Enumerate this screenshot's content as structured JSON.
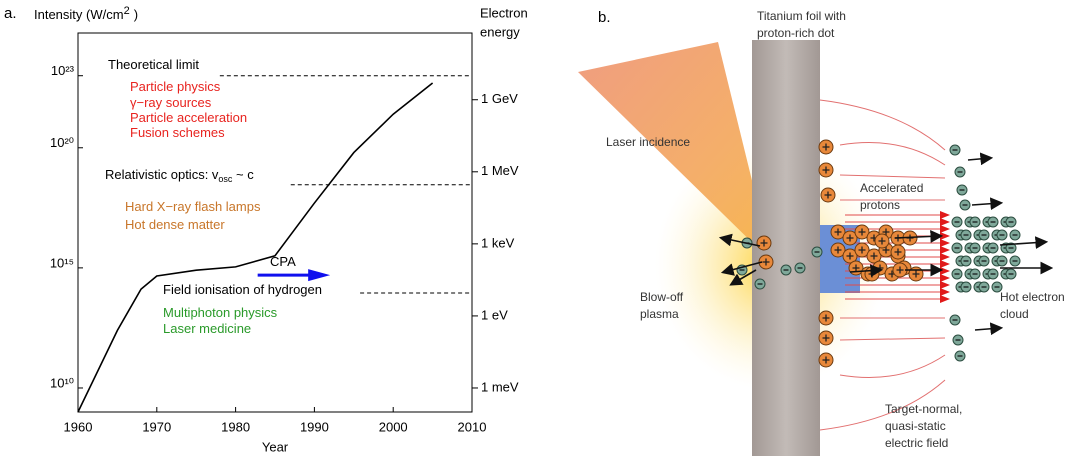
{
  "panel_a_label": "a.",
  "chart_data": {
    "type": "line",
    "y_label": {
      "text": "Intensity (W/cm",
      "superscript": "2",
      "suffix": ")"
    },
    "y2_label": [
      "Electron",
      "energy"
    ],
    "x_label": "Year",
    "x": [
      1960,
      1965,
      1968,
      1970,
      1975,
      1980,
      1985,
      1990,
      1995,
      2000,
      2005
    ],
    "values": [
      1000000000.0,
      2500000000000.0,
      130000000000000.0,
      460000000000000.0,
      800000000000000.0,
      1100000000000000.0,
      3200000000000000.0,
      5e+17,
      6.3e+19,
      2.5e+21,
      5e+22
    ],
    "color": "#000000",
    "xlim": [
      1960,
      2010
    ],
    "xticks": [
      1960,
      1970,
      1980,
      1990,
      2000,
      2010
    ],
    "ylim": [
      1000000000.0,
      6e+24
    ],
    "yscale": "log",
    "yticks": [
      {
        "value": 10000000000.0,
        "label": "10¹⁰"
      },
      {
        "value": 1000000000000000.0,
        "label": "10¹⁵"
      },
      {
        "value": 1e+20,
        "label": "10²⁰"
      },
      {
        "value": 1e+23,
        "label": "10²³"
      }
    ],
    "y2lim": [
      0.0001,
      600000000000.0
    ],
    "y2scale": "log",
    "y2ticks": [
      {
        "value": 0.001,
        "label": "1 meV"
      },
      {
        "value": 1,
        "label": "1 eV"
      },
      {
        "value": 1000,
        "label": "1 keV"
      },
      {
        "value": 1000000,
        "label": "1 MeV"
      },
      {
        "value": 1000000000,
        "label": "1 GeV"
      }
    ],
    "hlines": [
      {
        "y": 1e+23,
        "x": [
          1978,
          2010
        ]
      },
      {
        "y": 2.9e+18,
        "x": [
          1987,
          2010
        ]
      },
      {
        "y": 90000000000000.0,
        "x": [
          1995.8,
          2010
        ]
      }
    ],
    "arrow": {
      "y": 500000000000000.0,
      "x": [
        1982.8,
        1992
      ],
      "color": "#1010ee"
    },
    "annotations": [
      {
        "text": "Theoretical limit",
        "color": "#000000"
      },
      {
        "text": "Particle physics",
        "color": "#e8231f"
      },
      {
        "text": "γ−ray sources",
        "color": "#e8231f"
      },
      {
        "text": "Particle acceleration",
        "color": "#e8231f"
      },
      {
        "text": "Fusion schemes",
        "color": "#e8231f"
      },
      {
        "text": "Relativistic optics: v",
        "subscript": "osc",
        "suffix": " ~ c",
        "color": "#000000"
      },
      {
        "text": "Hard X−ray flash lamps",
        "color": "#c8762a"
      },
      {
        "text": "Hot dense matter",
        "color": "#c8762a"
      },
      {
        "text": "CPA",
        "color": "#000000"
      },
      {
        "text": "Field ionisation of hydrogen",
        "color": "#000000"
      },
      {
        "text": "Multiphoton physics",
        "color": "#2a9a2a"
      },
      {
        "text": "Laser medicine",
        "color": "#2a9a2a"
      }
    ]
  },
  "panel_b": {
    "label": "b.",
    "foil_label": [
      "Titanium foil with",
      "proton-rich dot"
    ],
    "laser_label": "Laser incidence",
    "protons_label": [
      "Accelerated",
      "protons"
    ],
    "plasma_label": [
      "Blow-off",
      "plasma"
    ],
    "electron_label": [
      "Hot electron",
      "cloud"
    ],
    "field_label": [
      "Target-normal,",
      "quasi-static",
      "electric field"
    ]
  }
}
